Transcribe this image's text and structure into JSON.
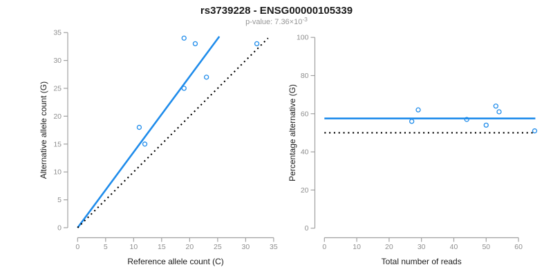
{
  "header": {
    "title": "rs3739228 - ENSG00000105339",
    "subtitle_prefix": "p-value: 7.36×10",
    "subtitle_exponent": "-3"
  },
  "colors": {
    "accent_blue": "#1f8ceb",
    "dotted_black": "#000000",
    "axis_gray": "#a0a0a0",
    "tick_label_gray": "#8e8e8e",
    "title_black": "#1a1a1a",
    "subtitle_gray": "#969696"
  },
  "chart_data": [
    {
      "type": "scatter",
      "panel": "left",
      "xlabel": "Reference allele count (C)",
      "ylabel": "Alternative allele count (G)",
      "xlim": [
        0,
        35
      ],
      "ylim": [
        0,
        35
      ],
      "xticks": [
        0,
        5,
        10,
        15,
        20,
        25,
        30,
        35
      ],
      "yticks": [
        0,
        5,
        10,
        15,
        20,
        25,
        30,
        35
      ],
      "grid": false,
      "legend": null,
      "points": [
        [
          11,
          18
        ],
        [
          12,
          15
        ],
        [
          19,
          25
        ],
        [
          19,
          34
        ],
        [
          21,
          33
        ],
        [
          23,
          27
        ],
        [
          32,
          33
        ]
      ],
      "lines": [
        {
          "name": "fit-line",
          "style": "solid",
          "color": "blue",
          "x1": 0,
          "y1": 0,
          "x2": 25.3,
          "y2": 34.3
        },
        {
          "name": "identity-line",
          "style": "dotted",
          "color": "black",
          "x1": 0,
          "y1": 0,
          "x2": 34,
          "y2": 34
        }
      ]
    },
    {
      "type": "scatter",
      "panel": "right",
      "xlabel": "Total number of reads",
      "ylabel": "Percentage alternative (G)",
      "xlim": [
        0,
        65.5
      ],
      "ylim": [
        0,
        100
      ],
      "xticks": [
        0,
        10,
        20,
        30,
        40,
        50,
        60
      ],
      "yticks": [
        0,
        20,
        40,
        60,
        80,
        100
      ],
      "grid": false,
      "legend": null,
      "points": [
        [
          27,
          56
        ],
        [
          29,
          62
        ],
        [
          44,
          57
        ],
        [
          50,
          54
        ],
        [
          53,
          64
        ],
        [
          54,
          61
        ],
        [
          65,
          51
        ]
      ],
      "lines": [
        {
          "name": "mean-percentage-line",
          "style": "solid",
          "color": "blue",
          "x1": 0,
          "y1": 57.5,
          "x2": 65.2,
          "y2": 57.5
        },
        {
          "name": "null-50pct-line",
          "style": "dotted",
          "color": "black",
          "x1": 0,
          "y1": 50,
          "x2": 64.6,
          "y2": 50
        }
      ]
    }
  ]
}
